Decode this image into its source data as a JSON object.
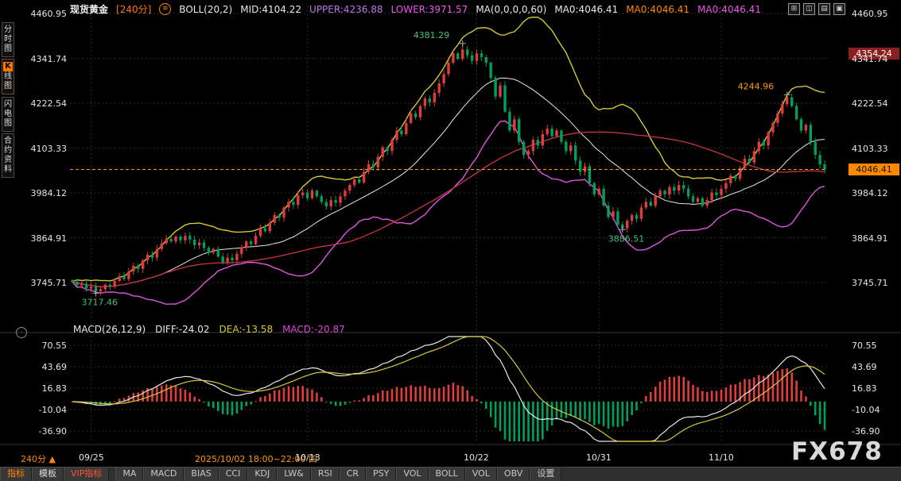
{
  "header": {
    "symbol": "现货黄金",
    "timeframe": "[240分]",
    "menu_icon": "≡",
    "boll_label": "BOLL(20,2)",
    "boll_mid": "MID:4104.22",
    "boll_upper": "UPPER:4236.88",
    "boll_lower": "LOWER:3971.57",
    "ma_label": "MA(0,0,0,0,60)",
    "ma0_white": "MA0:4046.41",
    "ma0_orange": "MA0:4046.41",
    "ma0_magenta": "MA0:4046.41"
  },
  "window_icons": [
    {
      "name": "layout-grid-icon",
      "glyph": "⊞"
    },
    {
      "name": "layout-split-icon",
      "glyph": "◫"
    },
    {
      "name": "layout-rows-icon",
      "glyph": "▤"
    },
    {
      "name": "layout-full-icon",
      "glyph": "▣"
    }
  ],
  "sidebar": {
    "items": [
      {
        "label": "分时图"
      },
      {
        "label": "K线图",
        "badge": "K",
        "rest": "线图"
      },
      {
        "label": "闪电图"
      },
      {
        "label": "合约资料"
      }
    ],
    "circle_icon": "·"
  },
  "y_axis_main": {
    "labels": [
      "4460.95",
      "4341.74",
      "4222.54",
      "4103.33",
      "3984.12",
      "3864.91",
      "3745.71"
    ]
  },
  "y_axis_macd": {
    "labels": [
      "70.55",
      "43.69",
      "16.83",
      "-10.04",
      "-36.90"
    ]
  },
  "price_tags": {
    "high_tag": "4354.24",
    "last_tag": "4046.41"
  },
  "macd_header": {
    "label": "MACD(26,12,9)",
    "diff": "DIFF:-24.02",
    "dea": "DEA:-13.58",
    "macd": "MACD:-20.87"
  },
  "x_axis": {
    "highlight": "2025/10/02 18:00~22:00 四"
  },
  "footer": {
    "period": "240分",
    "period_icon": "▲",
    "watermark": "FX678"
  },
  "toolbar": {
    "tabs": [
      {
        "label": "指标"
      },
      {
        "label": "模板"
      },
      {
        "label": "VIP指标"
      }
    ],
    "buttons": [
      "MA",
      "MACD",
      "BIAS",
      "CCI",
      "KDJ",
      "LW&",
      "RSI",
      "CR",
      "PSY",
      "VOL",
      "BOLL",
      "VOL",
      "OBV",
      "设置"
    ]
  },
  "colors": {
    "up": "#e03c3c",
    "down": "#00a05a",
    "grid": "#2b2b2b",
    "separator": "#333333",
    "accent": "#ff9900",
    "boll_mid": "#e8e8e8",
    "boll_upper": "#d4c837",
    "boll_lower": "#e055e0",
    "ma60": "#cc3344",
    "macd_diff": "#e8e8e8",
    "macd_dea": "#d4c837",
    "marker_cross": "#aaaaaa"
  },
  "chart_data": {
    "type": "candlestick+macd",
    "symbol": "现货黄金",
    "period": "240分",
    "last_price": 4046.41,
    "main": {
      "axis_values": [
        4460.95,
        4341.74,
        4222.54,
        4103.33,
        3984.12,
        3864.91,
        3745.71
      ]
    },
    "macd": {
      "params": "26,12,9",
      "diff": -24.02,
      "dea": -13.58,
      "macd": -20.87,
      "axis_values": [
        70.55,
        43.69,
        16.83,
        -10.04,
        -36.9
      ]
    },
    "boll": {
      "period": 20,
      "width": 2,
      "mid": 4104.22,
      "upper": 4236.88,
      "lower": 3971.57
    },
    "ma": {
      "period": 60,
      "value": 4046.41
    },
    "x_ticks": [
      {
        "label": "09/25",
        "i": 4
      },
      {
        "label": "10/13",
        "i": 50
      },
      {
        "label": "10/22",
        "i": 86
      },
      {
        "label": "10/31",
        "i": 112
      },
      {
        "label": "11/10",
        "i": 138
      }
    ],
    "markers": [
      {
        "text": "4381.29",
        "index": 83,
        "price": 4381.29,
        "color": "#44c17e",
        "placement": "above-left"
      },
      {
        "text": "4244.96",
        "index": 152,
        "price": 4244.96,
        "color": "#ff9900",
        "placement": "above-left"
      },
      {
        "text": "3886.51",
        "index": 117,
        "price": 3886.51,
        "color": "#44c17e",
        "placement": "below"
      },
      {
        "text": "3717.46",
        "index": 5,
        "price": 3717.46,
        "color": "#44c17e",
        "placement": "below"
      }
    ],
    "candles": {
      "first_open": 3752,
      "high_overrides": {
        "83": 4381.29,
        "152": 4244.96
      },
      "low_overrides": {
        "5": 3717.46,
        "117": 3886.51
      },
      "close": [
        3748,
        3738,
        3742,
        3730,
        3735,
        3722,
        3728,
        3740,
        3735,
        3750,
        3762,
        3755,
        3775,
        3790,
        3782,
        3805,
        3820,
        3812,
        3835,
        3850,
        3862,
        3855,
        3868,
        3858,
        3870,
        3860,
        3845,
        3852,
        3838,
        3825,
        3835,
        3815,
        3800,
        3812,
        3805,
        3822,
        3840,
        3855,
        3848,
        3870,
        3890,
        3882,
        3905,
        3925,
        3918,
        3945,
        3960,
        3952,
        3978,
        3985,
        3970,
        3990,
        3975,
        3960,
        3948,
        3965,
        3958,
        3975,
        3990,
        4005,
        4020,
        4012,
        4040,
        4060,
        4052,
        4080,
        4105,
        4095,
        4125,
        4150,
        4140,
        4170,
        4195,
        4185,
        4215,
        4235,
        4225,
        4250,
        4275,
        4300,
        4330,
        4355,
        4340,
        4365,
        4350,
        4335,
        4355,
        4345,
        4330,
        4290,
        4240,
        4270,
        4200,
        4150,
        4180,
        4120,
        4085,
        4095,
        4125,
        4110,
        4140,
        4155,
        4135,
        4150,
        4120,
        4095,
        4110,
        4070,
        4040,
        4055,
        4010,
        3980,
        3995,
        3950,
        3920,
        3935,
        3900,
        3890,
        3910,
        3925,
        3915,
        3945,
        3960,
        3950,
        3975,
        3990,
        3980,
        4000,
        3990,
        4005,
        3995,
        3975,
        3960,
        3970,
        3950,
        3965,
        3985,
        3978,
        3995,
        4010,
        4030,
        4022,
        4050,
        4075,
        4065,
        4095,
        4120,
        4110,
        4145,
        4170,
        4195,
        4220,
        4238,
        4215,
        4180,
        4150,
        4165,
        4120,
        4085,
        4060,
        4046.41
      ]
    }
  }
}
